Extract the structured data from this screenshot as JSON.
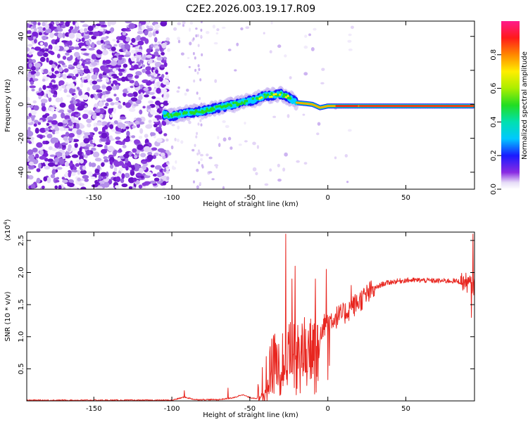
{
  "title": "C2E2.2026.003.19.17.R09",
  "chart_data": [
    {
      "type": "heatmap",
      "title": "C2E2.2026.003.19.17.R09",
      "xlabel": "Height of straight line (km)",
      "ylabel": "Frequency (Hz)",
      "xlim": [
        -193,
        94
      ],
      "ylim": [
        -50,
        49
      ],
      "xticks": [
        -150,
        -100,
        -50,
        0,
        50
      ],
      "yticks": [
        -40,
        -20,
        0,
        20,
        40
      ],
      "ridge": {
        "x": [
          -105,
          -100,
          -90,
          -80,
          -70,
          -60,
          -50,
          -40,
          -30,
          -25,
          -20,
          -10,
          -5,
          0,
          10,
          20,
          50,
          80,
          93
        ],
        "y": [
          -6,
          -7,
          -5,
          -4,
          -2,
          0,
          2,
          5,
          6,
          4,
          1,
          0,
          -2,
          -1,
          -1,
          -1,
          -1,
          -1,
          -1
        ]
      },
      "noise_region_x": [
        -193,
        -103
      ],
      "colorbar": {
        "label": "Normalized spectral amplitude",
        "ticks": [
          "0.0",
          "0.2",
          "0.4",
          "0.6",
          "0.8"
        ],
        "range": [
          0,
          1
        ]
      }
    },
    {
      "type": "line",
      "xlabel": "Height of straight line (km)",
      "ylabel": "SNR (10 * v/v)",
      "multiplier_prefix": "(x10",
      "multiplier_exp": "4",
      "multiplier_suffix": ")",
      "xlim": [
        -193,
        94
      ],
      "ylim": [
        0,
        2.63
      ],
      "xticks": [
        -150,
        -100,
        -50,
        0,
        50
      ],
      "yticks": [
        "0.5",
        "1.0",
        "1.5",
        "2.0",
        "2.5"
      ],
      "series": [
        {
          "name": "SNR",
          "color": "#e8261f",
          "envelope_x": [
            -193,
            -100,
            -92,
            -85,
            -70,
            -60,
            -55,
            -50,
            -45,
            -42,
            -40,
            -38,
            -35,
            -30,
            -25,
            -20,
            -10,
            -5,
            0,
            5,
            10,
            15,
            20,
            25,
            30,
            35,
            40,
            50,
            60,
            70,
            80,
            88,
            93
          ],
          "envelope_y": [
            0.01,
            0.01,
            0.06,
            0.02,
            0.02,
            0.05,
            0.1,
            0.05,
            0.04,
            0.1,
            0.2,
            0.4,
            0.6,
            0.7,
            0.8,
            0.8,
            0.9,
            1.1,
            1.25,
            1.3,
            1.35,
            1.45,
            1.55,
            1.65,
            1.75,
            1.82,
            1.85,
            1.88,
            1.88,
            1.87,
            1.87,
            1.85,
            1.8
          ],
          "spikes": [
            {
              "x": -92,
              "y": 0.16
            },
            {
              "x": -64,
              "y": 0.2
            },
            {
              "x": -27,
              "y": 2.6
            },
            {
              "x": -23,
              "y": 1.9
            },
            {
              "x": -21,
              "y": 2.1
            },
            {
              "x": -15,
              "y": 1.3
            },
            {
              "x": -8,
              "y": 1.9
            },
            {
              "x": -1,
              "y": 2.05
            },
            {
              "x": 0,
              "y": 0.33
            },
            {
              "x": 1,
              "y": 0.55
            },
            {
              "x": 15,
              "y": 1.8
            },
            {
              "x": 92,
              "y": 1.3
            },
            {
              "x": 93,
              "y": 2.6
            }
          ]
        }
      ]
    }
  ]
}
